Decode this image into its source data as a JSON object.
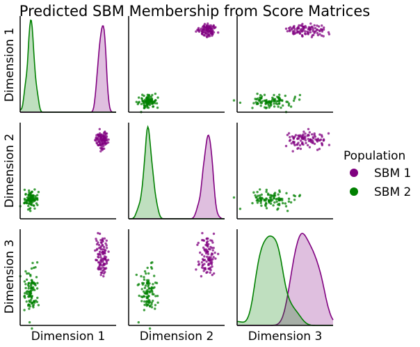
{
  "chart_data": {
    "type": "scatter",
    "kind": "pairplot",
    "title": "Predicted SBM Membership from Score Matrices",
    "variables": [
      "Dimension 1",
      "Dimension 2",
      "Dimension 3"
    ],
    "diagonal": "kde",
    "off_diagonal": "scatter",
    "grid": false,
    "legend": {
      "title": "Population",
      "placement": "right",
      "entries": [
        "SBM 1",
        "SBM 2"
      ]
    },
    "series": [
      {
        "name": "SBM 1",
        "color": "#800080",
        "n_points": 100,
        "center": {
          "Dimension 1": 0.85,
          "Dimension 2": 0.82,
          "Dimension 3": 0.72
        },
        "spread": {
          "Dimension 1": 0.035,
          "Dimension 2": 0.045,
          "Dimension 3": 0.11
        }
      },
      {
        "name": "SBM 2",
        "color": "#008000",
        "n_points": 100,
        "center": {
          "Dimension 1": 0.12,
          "Dimension 2": 0.2,
          "Dimension 3": 0.35
        },
        "spread": {
          "Dimension 1": 0.035,
          "Dimension 2": 0.045,
          "Dimension 3": 0.11
        }
      }
    ],
    "axis_ranges": {
      "Dimension 1": [
        0,
        1
      ],
      "Dimension 2": [
        0,
        1
      ],
      "Dimension 3": [
        0,
        1
      ]
    }
  }
}
